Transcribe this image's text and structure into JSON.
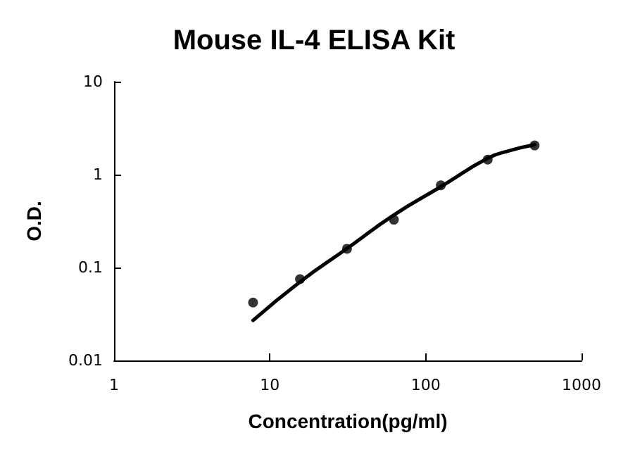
{
  "chart_data": {
    "type": "scatter",
    "title": "Mouse IL-4 ELISA Kit",
    "xlabel": "Concentration(pg/ml)",
    "ylabel": "O.D.",
    "log": "xy",
    "xlim": [
      1,
      1000
    ],
    "xticks": [
      1,
      10,
      100,
      1000
    ],
    "ylim": [
      0.01,
      10
    ],
    "yticks": [
      0.01,
      0.1,
      1,
      10
    ],
    "grid": false,
    "series": [
      {
        "color": "#000000",
        "marker": "circle",
        "x": [
          7.8,
          15.6,
          31.25,
          62.5,
          125,
          250,
          500
        ],
        "values": [
          0.042,
          0.075,
          0.159,
          0.327,
          0.766,
          1.45,
          2.06
        ]
      },
      {
        "type": "line",
        "color": "#000000",
        "marker": "none",
        "line_style": "solid",
        "x": [
          7.8,
          15.6,
          31.25,
          62.5,
          125,
          250,
          350,
          500
        ],
        "values": [
          0.027,
          0.07,
          0.16,
          0.368,
          0.74,
          1.5,
          1.82,
          2.1
        ]
      }
    ]
  }
}
